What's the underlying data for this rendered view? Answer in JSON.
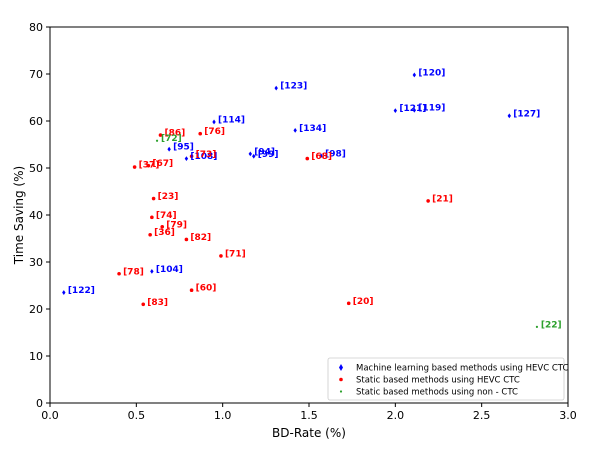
{
  "chart_data": {
    "type": "scatter",
    "xlabel": "BD-Rate (%)",
    "ylabel": "Time Saving (%)",
    "xlim": [
      0.0,
      3.0
    ],
    "ylim": [
      0,
      80
    ],
    "xticks": [
      "0.0",
      "0.5",
      "1.0",
      "1.5",
      "2.0",
      "2.5",
      "3.0"
    ],
    "yticks": [
      "0",
      "10",
      "20",
      "30",
      "40",
      "50",
      "60",
      "70",
      "80"
    ],
    "grid": false,
    "legend_position": "bottom-right",
    "series": [
      {
        "name": "Machine learning based methods using HEVC CTC",
        "marker": "diamond",
        "color": "#0000ff",
        "points": [
          {
            "x": 0.08,
            "y": 23.5,
            "label": "[122]"
          },
          {
            "x": 0.59,
            "y": 28.0,
            "label": "[104]"
          },
          {
            "x": 0.69,
            "y": 54.0,
            "label": "[95]"
          },
          {
            "x": 0.79,
            "y": 52.0,
            "label": "[108]"
          },
          {
            "x": 0.95,
            "y": 59.8,
            "label": "[114]"
          },
          {
            "x": 1.16,
            "y": 53.0,
            "label": "[94]"
          },
          {
            "x": 1.18,
            "y": 52.5,
            "label": "[99]"
          },
          {
            "x": 1.31,
            "y": 67.0,
            "label": "[123]"
          },
          {
            "x": 1.42,
            "y": 58.0,
            "label": "[134]"
          },
          {
            "x": 1.57,
            "y": 52.6,
            "label": "[98]"
          },
          {
            "x": 2.0,
            "y": 62.2,
            "label": "[121]"
          },
          {
            "x": 2.11,
            "y": 62.3,
            "label": "[119]"
          },
          {
            "x": 2.11,
            "y": 69.8,
            "label": "[120]"
          },
          {
            "x": 2.66,
            "y": 61.1,
            "label": "[127]"
          }
        ]
      },
      {
        "name": "Static based methods using HEVC CTC",
        "marker": "circle",
        "color": "#ff0000",
        "points": [
          {
            "x": 0.4,
            "y": 27.5,
            "label": "[78]"
          },
          {
            "x": 0.49,
            "y": 50.2,
            "label": "[37]"
          },
          {
            "x": 0.54,
            "y": 21.0,
            "label": "[83]"
          },
          {
            "x": 0.57,
            "y": 50.5,
            "label": "[67]"
          },
          {
            "x": 0.58,
            "y": 35.8,
            "label": "[36]"
          },
          {
            "x": 0.59,
            "y": 39.5,
            "label": "[74]"
          },
          {
            "x": 0.6,
            "y": 43.5,
            "label": "[23]"
          },
          {
            "x": 0.64,
            "y": 57.0,
            "label": "[86]"
          },
          {
            "x": 0.65,
            "y": 37.5,
            "label": "[79]"
          },
          {
            "x": 0.79,
            "y": 34.8,
            "label": "[82]"
          },
          {
            "x": 0.82,
            "y": 52.5,
            "label": "[73]"
          },
          {
            "x": 0.82,
            "y": 24.0,
            "label": "[60]"
          },
          {
            "x": 0.87,
            "y": 57.3,
            "label": "[76]"
          },
          {
            "x": 0.99,
            "y": 31.3,
            "label": "[71]"
          },
          {
            "x": 1.49,
            "y": 52.0,
            "label": "[68]"
          },
          {
            "x": 1.73,
            "y": 21.2,
            "label": "[20]"
          },
          {
            "x": 2.19,
            "y": 43.0,
            "label": "[21]"
          }
        ]
      },
      {
        "name": "Static based methods using non - CTC",
        "marker": "dot",
        "color": "#2ca02c",
        "points": [
          {
            "x": 0.62,
            "y": 55.8,
            "label": "[72]"
          },
          {
            "x": 2.82,
            "y": 16.2,
            "label": "[22]"
          }
        ]
      }
    ]
  }
}
